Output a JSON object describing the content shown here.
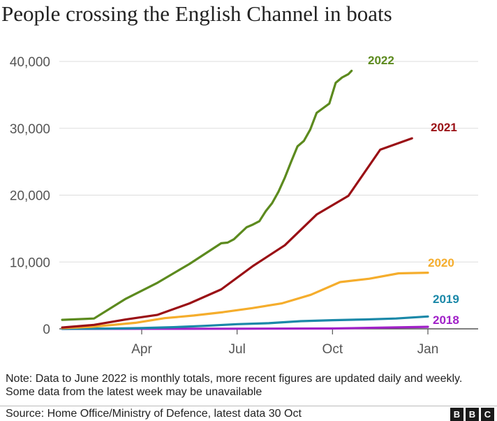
{
  "title": "People crossing the English Channel in boats",
  "note": "Note: Data to June 2022 is monthly totals, more recent figures are updated daily and weekly. Some data from the latest week may be unavailable",
  "source": "Source: Home Office/Ministry of Defence, latest data 30 Oct",
  "logo": [
    "B",
    "B",
    "C"
  ],
  "chart_data": {
    "type": "line",
    "title": "People crossing the English Channel in boats",
    "xlabel": "",
    "ylabel": "",
    "x_ticks": [
      {
        "label": "Apr",
        "month": 3
      },
      {
        "label": "Jul",
        "month": 6
      },
      {
        "label": "Oct",
        "month": 9
      },
      {
        "label": "Jan",
        "month": 12
      }
    ],
    "y_ticks": [
      0,
      10000,
      20000,
      30000,
      40000
    ],
    "y_tick_labels": [
      "0",
      "10,000",
      "20,000",
      "30,000",
      "40,000"
    ],
    "xlim": [
      0,
      12
    ],
    "ylim": [
      0,
      40000
    ],
    "grid": true,
    "legend": "end-of-line labels",
    "series": [
      {
        "name": "2018",
        "color": "#a020c8",
        "points": [
          [
            0.5,
            0
          ],
          [
            3,
            10
          ],
          [
            6,
            20
          ],
          [
            9,
            50
          ],
          [
            12,
            300
          ]
        ]
      },
      {
        "name": "2019",
        "color": "#1a88a8",
        "points": [
          [
            0.5,
            0
          ],
          [
            2,
            40
          ],
          [
            3,
            120
          ],
          [
            4,
            250
          ],
          [
            5,
            450
          ],
          [
            6,
            700
          ],
          [
            7,
            850
          ],
          [
            8,
            1150
          ],
          [
            9,
            1300
          ],
          [
            10,
            1400
          ],
          [
            11,
            1550
          ],
          [
            12,
            1850
          ]
        ]
      },
      {
        "name": "2020",
        "color": "#f5ad2c",
        "points": [
          [
            0.5,
            100
          ],
          [
            1.5,
            300
          ],
          [
            3,
            900
          ],
          [
            4,
            1600
          ],
          [
            5,
            2000
          ],
          [
            6,
            2500
          ],
          [
            7,
            3100
          ],
          [
            8,
            3800
          ],
          [
            9,
            5100
          ],
          [
            10,
            7000
          ],
          [
            11,
            7500
          ],
          [
            12,
            8300
          ],
          [
            13,
            8400
          ]
        ]
      },
      {
        "name": "2021",
        "color": "#9a1015",
        "points": [
          [
            0.5,
            200
          ],
          [
            1.5,
            600
          ],
          [
            2.5,
            1400
          ],
          [
            3.5,
            2100
          ],
          [
            4.5,
            3800
          ],
          [
            5.5,
            5900
          ],
          [
            6.5,
            9400
          ],
          [
            7.5,
            12500
          ],
          [
            8.5,
            17100
          ],
          [
            9.5,
            19900
          ],
          [
            10.5,
            26800
          ],
          [
            11.5,
            28500
          ]
        ]
      },
      {
        "name": "2022",
        "color": "#5c8a1e",
        "points": [
          [
            0.5,
            1350
          ],
          [
            1.5,
            1550
          ],
          [
            2.5,
            4500
          ],
          [
            3.5,
            6900
          ],
          [
            4.5,
            9700
          ],
          [
            5.5,
            12800
          ],
          [
            5.7,
            12900
          ],
          [
            5.9,
            13400
          ],
          [
            6.1,
            14300
          ],
          [
            6.3,
            15200
          ],
          [
            6.5,
            15600
          ],
          [
            6.7,
            16100
          ],
          [
            6.9,
            17600
          ],
          [
            7.1,
            18800
          ],
          [
            7.3,
            20500
          ],
          [
            7.5,
            22600
          ],
          [
            7.7,
            25000
          ],
          [
            7.9,
            27300
          ],
          [
            8.1,
            28100
          ],
          [
            8.3,
            29800
          ],
          [
            8.5,
            32300
          ],
          [
            8.7,
            33000
          ],
          [
            8.9,
            33700
          ],
          [
            9.1,
            36800
          ],
          [
            9.3,
            37600
          ],
          [
            9.5,
            38100
          ],
          [
            9.6,
            38600
          ]
        ]
      }
    ]
  }
}
